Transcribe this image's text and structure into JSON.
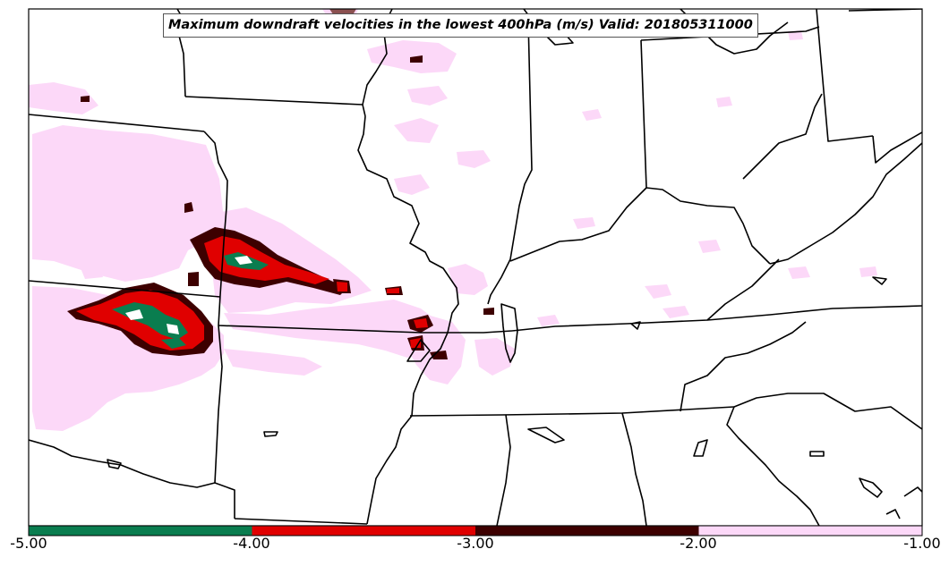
{
  "title": "Maximum downdraft velocities in the lowest 400hPa (m/s) Valid: 201805311000",
  "colorbar": {
    "ticks": [
      "-5.00",
      "-4.00",
      "-3.00",
      "-2.00",
      "-1.00"
    ],
    "bins": [
      {
        "from": -5,
        "to": -4,
        "color": "#0a7d4f"
      },
      {
        "from": -4,
        "to": -3,
        "color": "#e00000"
      },
      {
        "from": -3,
        "to": -2,
        "color": "#3d0000"
      },
      {
        "from": -2,
        "to": -1,
        "color": "#fcd8f8"
      }
    ]
  },
  "colors": {
    "light": "#fcd8f8",
    "dark": "#3d0000",
    "red": "#e00000",
    "green": "#0a7d4f",
    "border": "#000000"
  }
}
